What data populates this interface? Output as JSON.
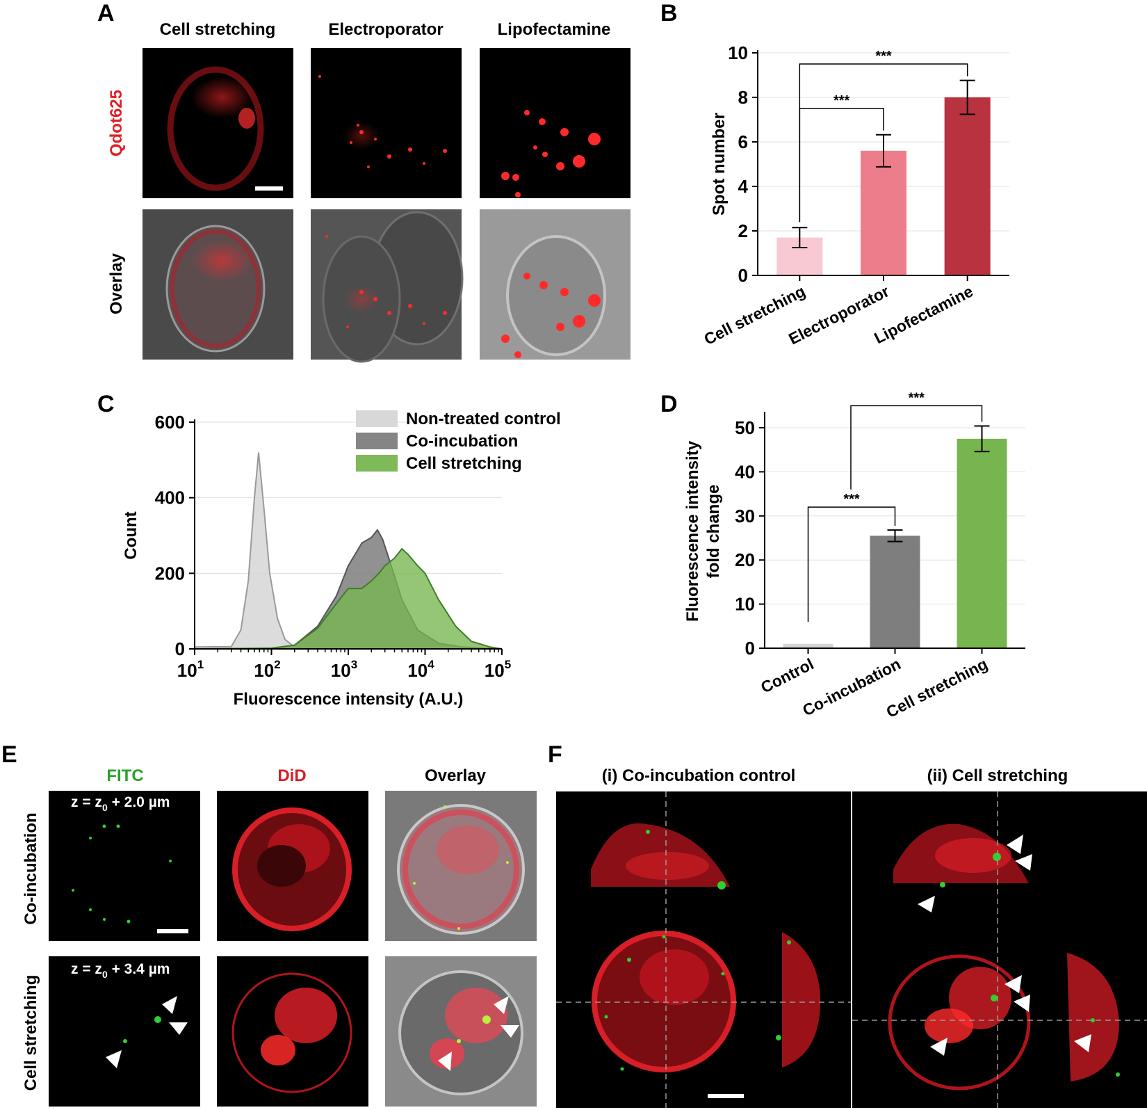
{
  "colors": {
    "pink_light": "#f8c9d2",
    "pink_mid": "#ee7d8b",
    "red_dark": "#b8323f",
    "gray_light": "#d6d6d6",
    "gray_dark": "#7e7e7e",
    "green": "#77b64e",
    "qdot_red": "#e01f26",
    "fitc_green": "#2aa12a",
    "did_red": "#d81e27"
  },
  "panel_letters": [
    "A",
    "B",
    "C",
    "D",
    "E",
    "F"
  ],
  "panelA": {
    "columns": [
      "Cell stretching",
      "Electroporator",
      "Lipofectamine"
    ],
    "rows": [
      "Qdot625",
      "Overlay"
    ]
  },
  "panelE": {
    "columns": [
      "FITC",
      "DiD",
      "Overlay"
    ],
    "rows": [
      "Co-incubation",
      "Cell stretching"
    ],
    "z_labels": [
      "z = z",
      "0",
      " + 2.0 µm",
      "z = z",
      "0",
      " + 3.4 µm"
    ]
  },
  "panelF": {
    "titles": [
      "(i) Co-incubation control",
      "(ii) Cell stretching"
    ]
  },
  "chart_data": [
    {
      "panel": "B",
      "type": "bar",
      "categories": [
        "Cell stretching",
        "Electroporator",
        "Lipofectamine"
      ],
      "values": [
        1.7,
        5.6,
        8.0
      ],
      "errors": [
        0.45,
        0.72,
        0.76
      ],
      "ylabel": "Spot number",
      "ylim": [
        0,
        10
      ],
      "yticks": [
        "0",
        "2",
        "4",
        "6",
        "8",
        "10"
      ],
      "grid": true,
      "significance": [
        {
          "from": 0,
          "to": 1,
          "label": "***"
        },
        {
          "from": 0,
          "to": 2,
          "label": "***"
        }
      ]
    },
    {
      "panel": "C",
      "type": "area",
      "xscale": "log",
      "xlim": [
        10,
        100000
      ],
      "ylim": [
        0,
        600
      ],
      "yticks": [
        "0",
        "200",
        "400",
        "600"
      ],
      "xticks": [
        {
          "base": "10",
          "exp": "1"
        },
        {
          "base": "10",
          "exp": "2"
        },
        {
          "base": "10",
          "exp": "3"
        },
        {
          "base": "10",
          "exp": "4"
        },
        {
          "base": "10",
          "exp": "5"
        }
      ],
      "xlabel": "Fluorescence intensity (A.U.)",
      "ylabel": "Count",
      "legend_position": "top-right",
      "series": [
        {
          "name": "Non-treated control",
          "x": [
            10,
            30,
            40,
            50,
            60,
            68,
            80,
            95,
            120,
            150,
            200,
            300
          ],
          "y": [
            5,
            6,
            50,
            180,
            400,
            520,
            370,
            200,
            80,
            25,
            5,
            2
          ]
        },
        {
          "name": "Co-incubation",
          "x": [
            10,
            100,
            200,
            400,
            700,
            1000,
            1500,
            2000,
            2400,
            2800,
            3500,
            5000,
            8000,
            15000,
            30000,
            100000
          ],
          "y": [
            0,
            0,
            10,
            60,
            140,
            220,
            280,
            295,
            315,
            290,
            230,
            130,
            50,
            15,
            5,
            0
          ]
        },
        {
          "name": "Cell stretching",
          "x": [
            10,
            100,
            200,
            400,
            700,
            1000,
            1500,
            2000,
            2500,
            3000,
            4000,
            5000,
            6000,
            8000,
            10000,
            15000,
            25000,
            40000,
            70000,
            100000
          ],
          "y": [
            0,
            2,
            10,
            55,
            120,
            160,
            160,
            180,
            200,
            220,
            240,
            265,
            250,
            220,
            200,
            130,
            60,
            20,
            5,
            0
          ]
        }
      ]
    },
    {
      "panel": "D",
      "type": "bar",
      "categories": [
        "Control",
        "Co-incubation",
        "Cell stretching"
      ],
      "values": [
        1.0,
        25.5,
        47.5
      ],
      "errors": [
        0,
        1.3,
        2.9
      ],
      "ylabel": "Fluorescence intensity\nfold change",
      "ylabel_lines": [
        "Fluorescence intensity",
        "fold change"
      ],
      "ylim": [
        0,
        53
      ],
      "yticks": [
        "0",
        "10",
        "20",
        "30",
        "40",
        "50"
      ],
      "grid": true,
      "significance": [
        {
          "from": 0,
          "to": 1,
          "label": "***"
        },
        {
          "from": 0,
          "to": 2,
          "label": "***"
        }
      ]
    }
  ]
}
